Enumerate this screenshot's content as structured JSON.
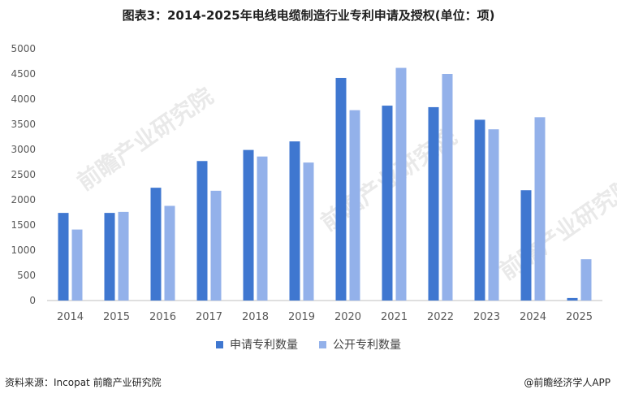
{
  "title": "图表3：2014-2025年电线电缆制造行业专利申请及授权(单位：项)",
  "footer": {
    "source": "资料来源：Incopat 前瞻产业研究院",
    "credit": "@前瞻经济学人APP"
  },
  "watermark": "前瞻产业研究院",
  "colors": {
    "series1": "#3f77d0",
    "series2": "#93b1ea",
    "axis": "#bfbfbf",
    "text": "#595959"
  },
  "chart_data": {
    "type": "bar",
    "title": "图表3：2014-2025年电线电缆制造行业专利申请及授权(单位：项)",
    "categories": [
      "2014",
      "2015",
      "2016",
      "2017",
      "2018",
      "2019",
      "2020",
      "2021",
      "2022",
      "2023",
      "2024",
      "2025"
    ],
    "series": [
      {
        "name": "申请专利数量",
        "values": [
          1740,
          1740,
          2240,
          2770,
          2990,
          3160,
          4420,
          3870,
          3840,
          3590,
          2190,
          50
        ]
      },
      {
        "name": "公开专利数量",
        "values": [
          1410,
          1760,
          1880,
          2180,
          2860,
          2740,
          3780,
          4620,
          4500,
          3400,
          3640,
          820
        ]
      }
    ],
    "ylim": [
      0,
      5000
    ],
    "yticks": [
      0,
      500,
      1000,
      1500,
      2000,
      2500,
      3000,
      3500,
      4000,
      4500,
      5000
    ],
    "xlabel": "",
    "ylabel": "",
    "grid": false,
    "legend": "bottom"
  }
}
